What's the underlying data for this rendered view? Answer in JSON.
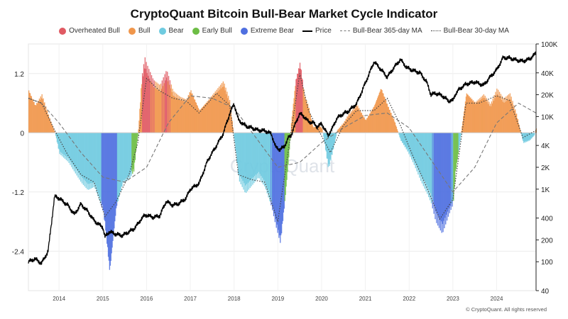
{
  "title": "CryptoQuant Bitcoin Bull-Bear Market Cycle Indicator",
  "legend": [
    {
      "key": "overheated",
      "label": "Overheated Bull",
      "kind": "dot",
      "color": "#e05a63"
    },
    {
      "key": "bull",
      "label": "Bull",
      "kind": "dot",
      "color": "#f0964b"
    },
    {
      "key": "bear",
      "label": "Bear",
      "kind": "dot",
      "color": "#6fcbe0"
    },
    {
      "key": "early_bull",
      "label": "Early Bull",
      "kind": "dot",
      "color": "#6dbd45"
    },
    {
      "key": "extreme_bear",
      "label": "Extreme Bear",
      "kind": "dot",
      "color": "#4f6fe0"
    },
    {
      "key": "price",
      "label": "Price",
      "kind": "line-solid",
      "color": "#000000"
    },
    {
      "key": "ma365",
      "label": "Bull-Bear 365-day MA",
      "kind": "line-dashed",
      "color": "#777777"
    },
    {
      "key": "ma30",
      "label": "Bull-Bear 30-day MA",
      "kind": "line-dotted",
      "color": "#444444"
    }
  ],
  "watermark": "CryptoQuant",
  "footer": "© CryptoQuant. All rights reserved",
  "colors": {
    "overheated": "#e05a63",
    "bull": "#f0964b",
    "bear": "#6fcbe0",
    "early_bull": "#6dbd45",
    "extreme_bear": "#4f6fe0",
    "price": "#000000",
    "ma365": "#777777",
    "ma30": "#444444"
  },
  "chart_data": {
    "type": "area",
    "title": "CryptoQuant Bitcoin Bull-Bear Market Cycle Indicator",
    "x_ticks": [
      "2014",
      "2015",
      "2016",
      "2017",
      "2018",
      "2019",
      "2020",
      "2021",
      "2022",
      "2023",
      "2024"
    ],
    "x_range": [
      2013.3,
      2024.9
    ],
    "y_left_ticks": [
      "1.2",
      "0",
      "-1.2",
      "-2.4"
    ],
    "y_left_range": [
      -3.2,
      1.8
    ],
    "y_right_ticks": [
      "100K",
      "40K",
      "20K",
      "10K",
      "4K",
      "2K",
      "1K",
      "400",
      "200",
      "100",
      "40"
    ],
    "y_right_range": [
      40,
      100000
    ],
    "y_right_scale": "log",
    "grid": true,
    "legend_position": "top",
    "series": [
      {
        "name": "Bull-Bear indicator",
        "x": [
          2013.3,
          2013.45,
          2013.6,
          2013.75,
          2013.9,
          2014.0,
          2014.2,
          2014.35,
          2014.5,
          2014.65,
          2014.8,
          2014.9,
          2015.0,
          2015.05,
          2015.15,
          2015.3,
          2015.45,
          2015.6,
          2015.7,
          2015.8,
          2015.88,
          2015.95,
          2016.0,
          2016.15,
          2016.3,
          2016.45,
          2016.6,
          2016.75,
          2016.9,
          2017.0,
          2017.2,
          2017.4,
          2017.6,
          2017.75,
          2017.9,
          2018.0,
          2018.1,
          2018.25,
          2018.4,
          2018.55,
          2018.7,
          2018.85,
          2018.95,
          2019.05,
          2019.15,
          2019.25,
          2019.3,
          2019.4,
          2019.5,
          2019.6,
          2019.7,
          2019.8,
          2019.9,
          2020.0,
          2020.15,
          2020.25,
          2020.35,
          2020.5,
          2020.6,
          2020.8,
          2021.0,
          2021.2,
          2021.35,
          2021.5,
          2021.65,
          2021.8,
          2021.95,
          2022.1,
          2022.25,
          2022.4,
          2022.5,
          2022.6,
          2022.75,
          2022.9,
          2023.0,
          2023.05,
          2023.15,
          2023.3,
          2023.5,
          2023.7,
          2023.85,
          2024.0,
          2024.15,
          2024.3,
          2024.45,
          2024.6,
          2024.75,
          2024.85,
          2024.9
        ],
        "values": [
          0.85,
          0.55,
          0.75,
          0.35,
          0.0,
          -0.4,
          -0.55,
          -0.75,
          -0.95,
          -1.1,
          -1.05,
          -1.3,
          -1.55,
          -1.9,
          -2.8,
          -1.5,
          -1.0,
          -0.9,
          -0.75,
          0.0,
          1.05,
          1.45,
          1.3,
          1.0,
          0.9,
          1.2,
          0.8,
          0.7,
          0.65,
          0.85,
          0.45,
          0.65,
          0.85,
          1.0,
          0.6,
          -0.15,
          -0.9,
          -1.15,
          -1.0,
          -0.85,
          -1.05,
          -1.45,
          -1.85,
          -2.2,
          -1.4,
          -0.4,
          0.2,
          1.05,
          1.4,
          0.75,
          0.5,
          0.1,
          0.15,
          0.1,
          -0.7,
          -0.35,
          0.05,
          0.2,
          0.35,
          0.55,
          0.25,
          0.55,
          0.9,
          0.55,
          0.25,
          -0.15,
          -0.35,
          -0.6,
          -0.9,
          -1.15,
          -1.35,
          -1.7,
          -1.95,
          -1.6,
          -1.4,
          -0.8,
          -0.2,
          0.8,
          0.6,
          0.75,
          0.55,
          0.85,
          0.65,
          0.75,
          0.35,
          -0.2,
          -0.15,
          -0.05,
          0.1
        ]
      },
      {
        "name": "Price",
        "x": [
          2013.3,
          2013.45,
          2013.6,
          2013.75,
          2013.9,
          2014.0,
          2014.2,
          2014.35,
          2014.5,
          2014.65,
          2014.8,
          2014.9,
          2015.0,
          2015.05,
          2015.15,
          2015.3,
          2015.45,
          2015.6,
          2015.7,
          2015.8,
          2015.88,
          2015.95,
          2016.0,
          2016.15,
          2016.3,
          2016.45,
          2016.6,
          2016.75,
          2016.9,
          2017.0,
          2017.2,
          2017.4,
          2017.6,
          2017.75,
          2017.9,
          2018.0,
          2018.1,
          2018.25,
          2018.4,
          2018.55,
          2018.7,
          2018.85,
          2018.95,
          2019.05,
          2019.15,
          2019.25,
          2019.3,
          2019.4,
          2019.5,
          2019.6,
          2019.7,
          2019.8,
          2019.9,
          2020.0,
          2020.15,
          2020.25,
          2020.35,
          2020.5,
          2020.6,
          2020.8,
          2021.0,
          2021.2,
          2021.35,
          2021.5,
          2021.65,
          2021.8,
          2021.95,
          2022.1,
          2022.25,
          2022.4,
          2022.5,
          2022.6,
          2022.75,
          2022.9,
          2023.0,
          2023.05,
          2023.15,
          2023.3,
          2023.5,
          2023.7,
          2023.85,
          2024.0,
          2024.15,
          2024.3,
          2024.45,
          2024.6,
          2024.75,
          2024.85,
          2024.9
        ],
        "values": [
          100,
          110,
          95,
          140,
          800,
          750,
          600,
          450,
          620,
          500,
          370,
          330,
          300,
          220,
          260,
          240,
          230,
          260,
          280,
          330,
          390,
          430,
          440,
          410,
          430,
          680,
          600,
          640,
          750,
          1000,
          1200,
          2500,
          4000,
          5800,
          11000,
          15000,
          9000,
          7500,
          7000,
          6500,
          6400,
          5800,
          3800,
          3500,
          3900,
          5200,
          5500,
          8000,
          11000,
          10000,
          8500,
          8300,
          7200,
          8000,
          5500,
          7000,
          9500,
          11000,
          11700,
          15000,
          29000,
          57000,
          45000,
          35000,
          47000,
          61000,
          47000,
          43000,
          40000,
          30000,
          20000,
          21000,
          19500,
          16500,
          16600,
          20000,
          24000,
          28000,
          30000,
          27000,
          35000,
          44000,
          65000,
          64000,
          60000,
          58000,
          62000,
          70000,
          75000
        ]
      },
      {
        "name": "Bull-Bear 365-day MA",
        "x": [
          2013.3,
          2013.6,
          2014.0,
          2014.5,
          2015.0,
          2015.5,
          2016.0,
          2016.5,
          2017.0,
          2017.5,
          2018.0,
          2018.5,
          2019.0,
          2019.5,
          2020.0,
          2020.5,
          2021.0,
          2021.5,
          2022.0,
          2022.5,
          2023.0,
          2023.5,
          2024.0,
          2024.5,
          2024.9
        ],
        "values": [
          0.7,
          0.6,
          0.2,
          -0.4,
          -0.9,
          -1.0,
          -0.7,
          0.2,
          0.75,
          0.7,
          0.5,
          -0.1,
          -0.7,
          -0.6,
          -0.2,
          0.1,
          0.35,
          0.4,
          0.1,
          -0.55,
          -1.2,
          -0.7,
          0.2,
          0.6,
          0.4
        ]
      },
      {
        "name": "Bull-Bear 30-day MA",
        "x": [
          2013.3,
          2013.6,
          2013.9,
          2014.2,
          2014.5,
          2014.8,
          2015.05,
          2015.3,
          2015.6,
          2015.8,
          2016.0,
          2016.3,
          2016.6,
          2016.9,
          2017.2,
          2017.6,
          2017.9,
          2018.1,
          2018.4,
          2018.7,
          2019.0,
          2019.3,
          2019.5,
          2019.7,
          2019.9,
          2020.2,
          2020.5,
          2020.8,
          2021.2,
          2021.5,
          2021.8,
          2022.1,
          2022.4,
          2022.7,
          2023.0,
          2023.3,
          2023.6,
          2024.0,
          2024.3,
          2024.6,
          2024.9
        ],
        "values": [
          0.7,
          0.6,
          0.05,
          -0.45,
          -0.85,
          -1.0,
          -1.7,
          -1.4,
          -0.85,
          -0.2,
          1.1,
          0.85,
          0.7,
          0.65,
          0.4,
          0.8,
          0.55,
          -0.85,
          -0.95,
          -1.0,
          -1.8,
          0.0,
          1.2,
          0.45,
          0.1,
          -0.4,
          0.15,
          0.45,
          0.45,
          0.7,
          0.15,
          -0.5,
          -1.1,
          -1.75,
          -1.35,
          0.6,
          0.6,
          0.75,
          0.65,
          -0.1,
          0.05
        ]
      }
    ]
  }
}
